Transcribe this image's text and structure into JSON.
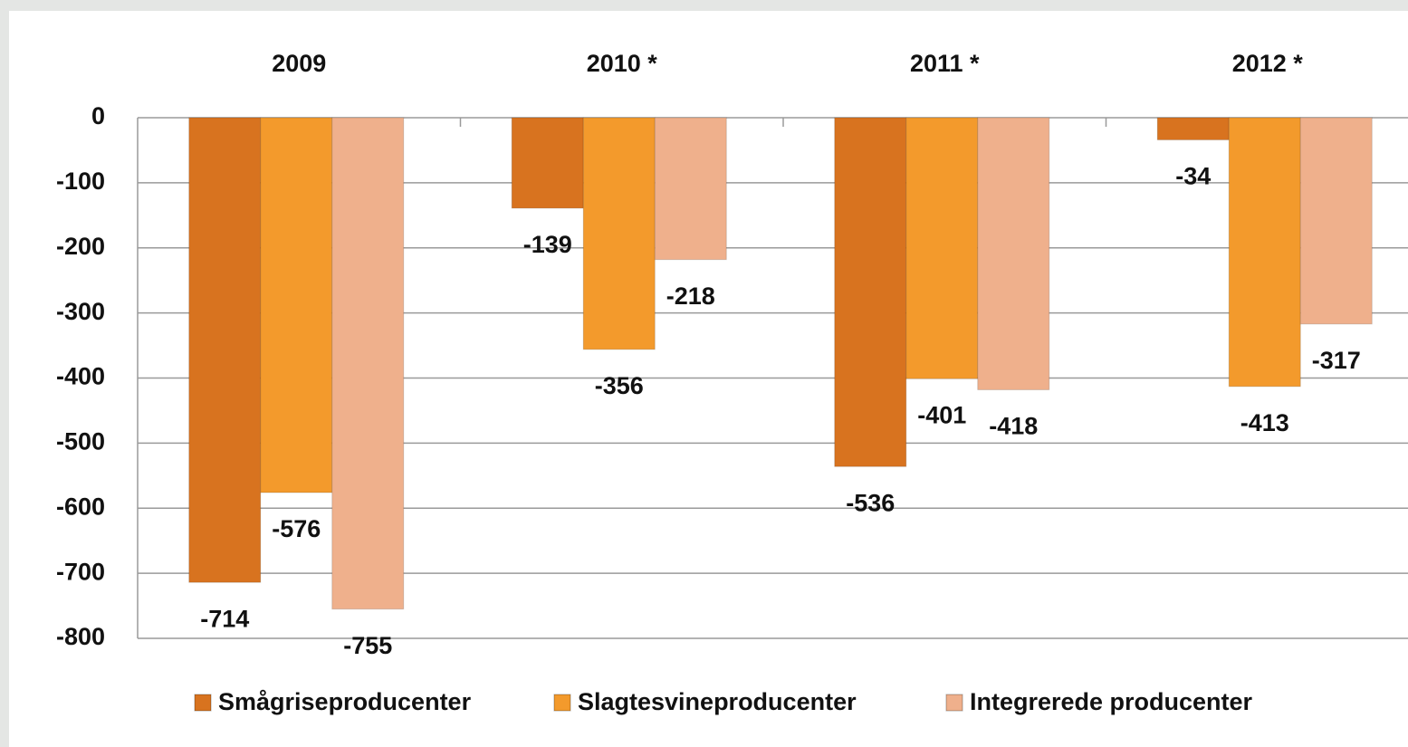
{
  "chart_data": {
    "type": "bar",
    "categories": [
      "2009",
      "2010 *",
      "2011 *",
      "2012 *"
    ],
    "series": [
      {
        "name": "Smågriseproducenter",
        "color": "#d8731f",
        "values": [
          -714,
          -139,
          -536,
          -34
        ]
      },
      {
        "name": "Slagtesvineproducenter",
        "color": "#f39a2c",
        "values": [
          -576,
          -356,
          -401,
          -413
        ]
      },
      {
        "name": "Integrerede producenter",
        "color": "#efb08c",
        "values": [
          -755,
          -218,
          -418,
          -317
        ]
      }
    ],
    "ylim": [
      -800,
      0
    ],
    "yticks": [
      0,
      -100,
      -200,
      -300,
      -400,
      -500,
      -600,
      -700,
      -800
    ],
    "grid": true,
    "legend": "bottom"
  }
}
